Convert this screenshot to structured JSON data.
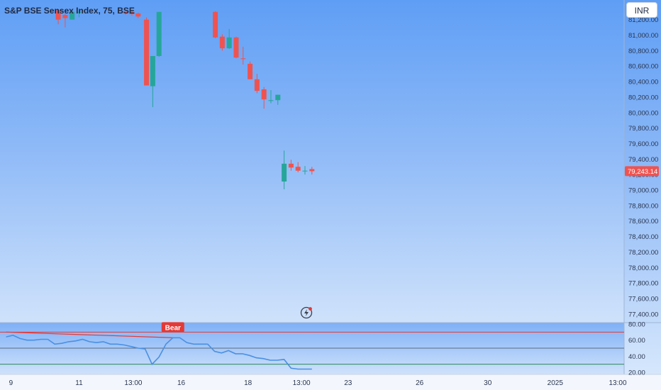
{
  "header": {
    "symbol_title": "S&P BSE Sensex Index, 75, BSE",
    "currency_button": "INR"
  },
  "colors": {
    "up_candle": "#26a69a",
    "down_candle": "#ef5350",
    "oscillator_line": "#4a90e2",
    "overbought_line": "#e53935",
    "midline": "#5a6b80",
    "oversold_line": "#2e8b57",
    "signal_label": "#e53935",
    "last_price_label": "#ef5350"
  },
  "icons": {
    "replay": "lightning-replay-icon"
  },
  "chart_data": [
    {
      "type": "candlestick",
      "title": "S&P BSE Sensex Index, 75, BSE",
      "ylim": [
        77300,
        81200
      ],
      "y_ticks": [
        "81,000.00",
        "80,800.00",
        "80,600.00",
        "80,400.00",
        "80,200.00",
        "80,000.00",
        "79,800.00",
        "79,600.00",
        "79,400.00",
        "79,200.00",
        "79,000.00",
        "78,800.00",
        "78,600.00",
        "78,400.00",
        "78,200.00",
        "78,000.00",
        "77,800.00",
        "77,600.00",
        "77,400.00"
      ],
      "y_tick_values": [
        81000,
        80800,
        80600,
        80400,
        80200,
        80000,
        79800,
        79600,
        79400,
        79200,
        79000,
        78800,
        78600,
        78400,
        78200,
        78000,
        77800,
        77600,
        77400
      ],
      "partial_top_label": "81,200.00",
      "last_price": 79243.14,
      "last_price_label": "79,243.14",
      "x_ticks": [
        "9",
        "11",
        "13:00",
        "16",
        "18",
        "13:00",
        "23",
        "26",
        "30",
        "2025",
        "13:00"
      ],
      "x_tick_index": [
        0.7,
        10.5,
        18.3,
        25.2,
        34.8,
        42.5,
        49.2,
        59.5,
        69.3,
        79.0,
        88.0
      ],
      "candles": [
        {
          "i": 7.5,
          "o": 81320,
          "h": 81330,
          "l": 81140,
          "c": 81200
        },
        {
          "i": 8.5,
          "o": 81260,
          "h": 81310,
          "l": 81100,
          "c": 81220
        },
        {
          "i": 9.5,
          "o": 81200,
          "h": 81320,
          "l": 81200,
          "c": 81300
        },
        {
          "i": 10.5,
          "o": 81300,
          "h": 81330,
          "l": 81230,
          "c": 81300
        },
        {
          "i": 17.2,
          "o": 81300,
          "h": 81310,
          "l": 81260,
          "c": 81280
        },
        {
          "i": 18.1,
          "o": 81300,
          "h": 81310,
          "l": 81250,
          "c": 81270
        },
        {
          "i": 19.0,
          "o": 81280,
          "h": 81290,
          "l": 81220,
          "c": 81240
        },
        {
          "i": 20.2,
          "o": 81200,
          "h": 81230,
          "l": 80350,
          "c": 80350
        },
        {
          "i": 21.1,
          "o": 80340,
          "h": 80710,
          "l": 80070,
          "c": 80730
        },
        {
          "i": 22.0,
          "o": 80730,
          "h": 81300,
          "l": 80720,
          "c": 81300
        },
        {
          "i": 30.1,
          "o": 81300,
          "h": 81310,
          "l": 80960,
          "c": 80970
        },
        {
          "i": 31.1,
          "o": 80980,
          "h": 81010,
          "l": 80800,
          "c": 80830
        },
        {
          "i": 32.1,
          "o": 80830,
          "h": 81080,
          "l": 80820,
          "c": 80970
        },
        {
          "i": 33.1,
          "o": 80970,
          "h": 80980,
          "l": 80700,
          "c": 80710
        },
        {
          "i": 34.1,
          "o": 80700,
          "h": 80850,
          "l": 80620,
          "c": 80690
        },
        {
          "i": 35.1,
          "o": 80630,
          "h": 80660,
          "l": 80430,
          "c": 80430
        },
        {
          "i": 36.1,
          "o": 80430,
          "h": 80500,
          "l": 80250,
          "c": 80280
        },
        {
          "i": 37.1,
          "o": 80300,
          "h": 80330,
          "l": 80050,
          "c": 80170
        },
        {
          "i": 38.1,
          "o": 80150,
          "h": 80290,
          "l": 80120,
          "c": 80160
        },
        {
          "i": 39.1,
          "o": 80160,
          "h": 80230,
          "l": 80100,
          "c": 80230
        },
        {
          "i": 40.0,
          "o": 79110,
          "h": 79510,
          "l": 79010,
          "c": 79340
        },
        {
          "i": 41.0,
          "o": 79340,
          "h": 79390,
          "l": 79250,
          "c": 79290
        },
        {
          "i": 42.0,
          "o": 79300,
          "h": 79360,
          "l": 79230,
          "c": 79250
        },
        {
          "i": 43.0,
          "o": 79250,
          "h": 79310,
          "l": 79200,
          "c": 79250
        },
        {
          "i": 44.0,
          "o": 79270,
          "h": 79300,
          "l": 79200,
          "c": 79243.14
        }
      ]
    },
    {
      "type": "line",
      "ylim": [
        20,
        80
      ],
      "y_ticks": [
        "80.00",
        "60.00",
        "40.00",
        "20.00"
      ],
      "y_tick_values": [
        80,
        60,
        40,
        20
      ],
      "overbought_level": 70,
      "midline_level": 50,
      "oversold_level": 30,
      "signal_label": "Bear",
      "signal_at": {
        "i": 24.0,
        "value": 70
      },
      "divergence_line": {
        "from": {
          "i": 0,
          "value": 70
        },
        "to": {
          "i": 24.0,
          "value": 63
        }
      },
      "series": [
        {
          "x": [
            0,
            1,
            2,
            3,
            4,
            5,
            6,
            7,
            8,
            9,
            10,
            11,
            12,
            13,
            14,
            15,
            16,
            17,
            18,
            19,
            20,
            21,
            22,
            23,
            24,
            25,
            26,
            27,
            28,
            29,
            30,
            31,
            32,
            33,
            34,
            35,
            36,
            37,
            38,
            39,
            40,
            41,
            42,
            43,
            44
          ],
          "values": [
            64,
            66,
            62,
            60,
            60,
            61,
            61,
            55,
            56,
            58,
            59,
            61,
            58,
            57,
            58,
            55,
            55,
            54,
            52,
            50,
            49,
            30,
            39,
            55,
            63,
            63,
            57,
            55,
            55,
            55,
            46,
            44,
            47,
            43,
            43,
            41,
            38,
            37,
            35,
            35,
            36,
            25,
            24,
            24,
            24
          ]
        }
      ]
    }
  ]
}
